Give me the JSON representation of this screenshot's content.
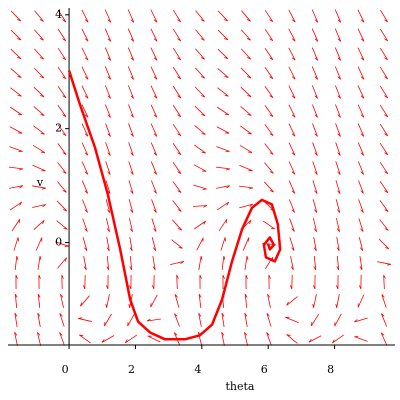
{
  "chart_data": {
    "type": "phaseplot",
    "xlabel": "theta",
    "ylabel": "v",
    "xlim": [
      -1.84,
      9.82
    ],
    "ylim": [
      -1.8,
      4.12
    ],
    "xticks": [
      0,
      2,
      4,
      6,
      8
    ],
    "yticks": [
      0,
      2,
      4
    ],
    "color": "#ff0000",
    "x": [
      0,
      0.33,
      0.78,
      1.17,
      1.54,
      1.84,
      2.08,
      2.44,
      2.89,
      3.49,
      3.94,
      4.31,
      4.61,
      4.91,
      5.21,
      5.51,
      5.81,
      6.11,
      6.29,
      6.36,
      6.2,
      5.93,
      5.87,
      6.05,
      6.17,
      6.05,
      5.99
    ],
    "y": [
      3.02,
      2.42,
      1.67,
      0.84,
      -0.12,
      -1.0,
      -1.39,
      -1.58,
      -1.7,
      -1.7,
      -1.63,
      -1.44,
      -1.0,
      -0.33,
      0.23,
      0.61,
      0.75,
      0.67,
      0.32,
      -0.12,
      -0.33,
      -0.26,
      -0.04,
      0.09,
      -0.04,
      -0.12,
      -0.02
    ]
  }
}
